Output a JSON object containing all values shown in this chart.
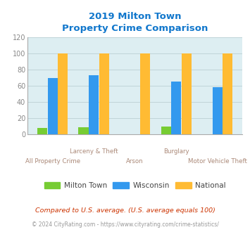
{
  "title_line1": "2019 Milton Town",
  "title_line2": "Property Crime Comparison",
  "categories": [
    "All Property Crime",
    "Larceny & Theft",
    "Arson",
    "Burglary",
    "Motor Vehicle Theft"
  ],
  "milton_town": [
    8,
    9,
    0,
    10,
    0
  ],
  "wisconsin": [
    70,
    73,
    0,
    65,
    58
  ],
  "national": [
    100,
    100,
    100,
    100,
    100
  ],
  "color_milton": "#77cc33",
  "color_wisconsin": "#3399ee",
  "color_national": "#ffbb33",
  "ylim": [
    0,
    120
  ],
  "yticks": [
    0,
    20,
    40,
    60,
    80,
    100,
    120
  ],
  "bg_color": "#ddeef2",
  "grid_color": "#c0d4d8",
  "title_color": "#1177cc",
  "xlabel_top_color": "#aa8877",
  "xlabel_bot_color": "#aa8877",
  "legend_labels": [
    "Milton Town",
    "Wisconsin",
    "National"
  ],
  "footnote1": "Compared to U.S. average. (U.S. average equals 100)",
  "footnote2": "© 2024 CityRating.com - https://www.cityrating.com/crime-statistics/",
  "footnote1_color": "#cc3300",
  "footnote2_color": "#999999",
  "top_labels": [
    null,
    "Larceny & Theft",
    null,
    "Burglary",
    null
  ],
  "bot_labels": [
    "All Property Crime",
    null,
    "Arson",
    null,
    "Motor Vehicle Theft"
  ]
}
